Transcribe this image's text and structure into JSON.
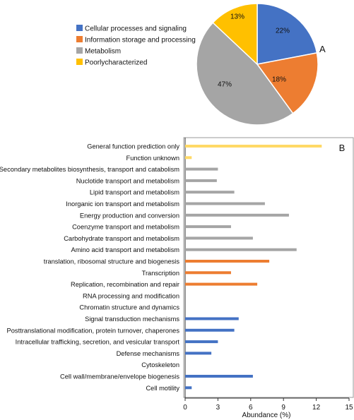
{
  "chart_data": [
    {
      "type": "pie",
      "panel_label": "A",
      "slices": [
        {
          "label": "Cellular processes and signaling",
          "value": 22,
          "value_label": "22%",
          "color": "#4472C4"
        },
        {
          "label": "Information storage and processing",
          "value": 18,
          "value_label": "18%",
          "color": "#ED7D31"
        },
        {
          "label": "Metabolism",
          "value": 47,
          "value_label": "47%",
          "color": "#A5A5A5"
        },
        {
          "label": "Poorlycharacterized",
          "value": 13,
          "value_label": "13%",
          "color": "#FFC000"
        }
      ],
      "legend_position": "left"
    },
    {
      "type": "bar",
      "orientation": "horizontal",
      "panel_label": "B",
      "xlabel": "Abundance (%)",
      "xlim": [
        0,
        15
      ],
      "xticks": [
        "0",
        "3",
        "6",
        "9",
        "12",
        "15"
      ],
      "grid": false,
      "categories": [
        "General function prediction only",
        "Function unknown",
        "Secondary metabolites biosynthesis, transport and catabolism",
        "Nuclotide transport and metabolism",
        "Lipid transport and metabolism",
        "Inorganic ion transport and metabolism",
        "Energy production and conversion",
        "Coenzyme transport and metabolism",
        "Carbohydrate transport and metabolism",
        "Amino acid transport and metabolism",
        "translation, ribosomal structure and biogenesis",
        "Transcription",
        "Replication, recombination and repair",
        "RNA processing and modification",
        "Chromatin structure and dynamics",
        "Signal transduction mechanisms",
        "Posttranslational modification, protein turnover, chaperones",
        "Intracellular trafficking, secretion, and vesicular transport",
        "Defense mechanisms",
        "Cytoskeleton",
        "Cell wall/membrane/envelope biogenesis",
        "Cell motility"
      ],
      "values": [
        12.5,
        0.6,
        3.0,
        2.9,
        4.5,
        7.3,
        9.5,
        4.2,
        6.2,
        10.2,
        7.7,
        4.2,
        6.6,
        0,
        0,
        4.9,
        4.5,
        3.0,
        2.4,
        0,
        6.2,
        0.6
      ],
      "colors": [
        "#FFD966",
        "#FFD966",
        "#A5A5A5",
        "#A5A5A5",
        "#A5A5A5",
        "#A5A5A5",
        "#A5A5A5",
        "#A5A5A5",
        "#A5A5A5",
        "#A5A5A5",
        "#ED7D31",
        "#ED7D31",
        "#ED7D31",
        "#ED7D31",
        "#ED7D31",
        "#4472C4",
        "#4472C4",
        "#4472C4",
        "#4472C4",
        "#4472C4",
        "#4472C4",
        "#4472C4"
      ]
    }
  ]
}
